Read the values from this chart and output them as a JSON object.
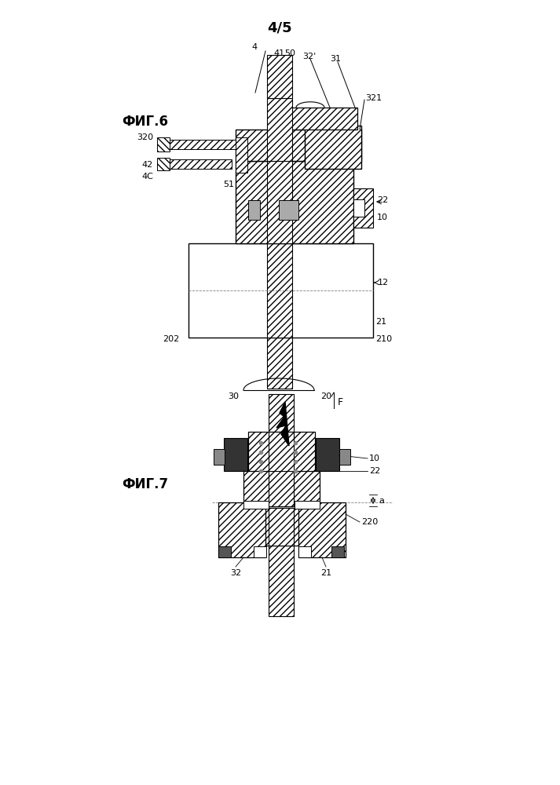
{
  "page_label": "4/5",
  "bg_color": "#ffffff",
  "fig6_label": "ФИГ.6",
  "fig7_label": "ФИГ.7",
  "font_size_label": 12,
  "font_size_page": 13,
  "font_size_annot": 8
}
